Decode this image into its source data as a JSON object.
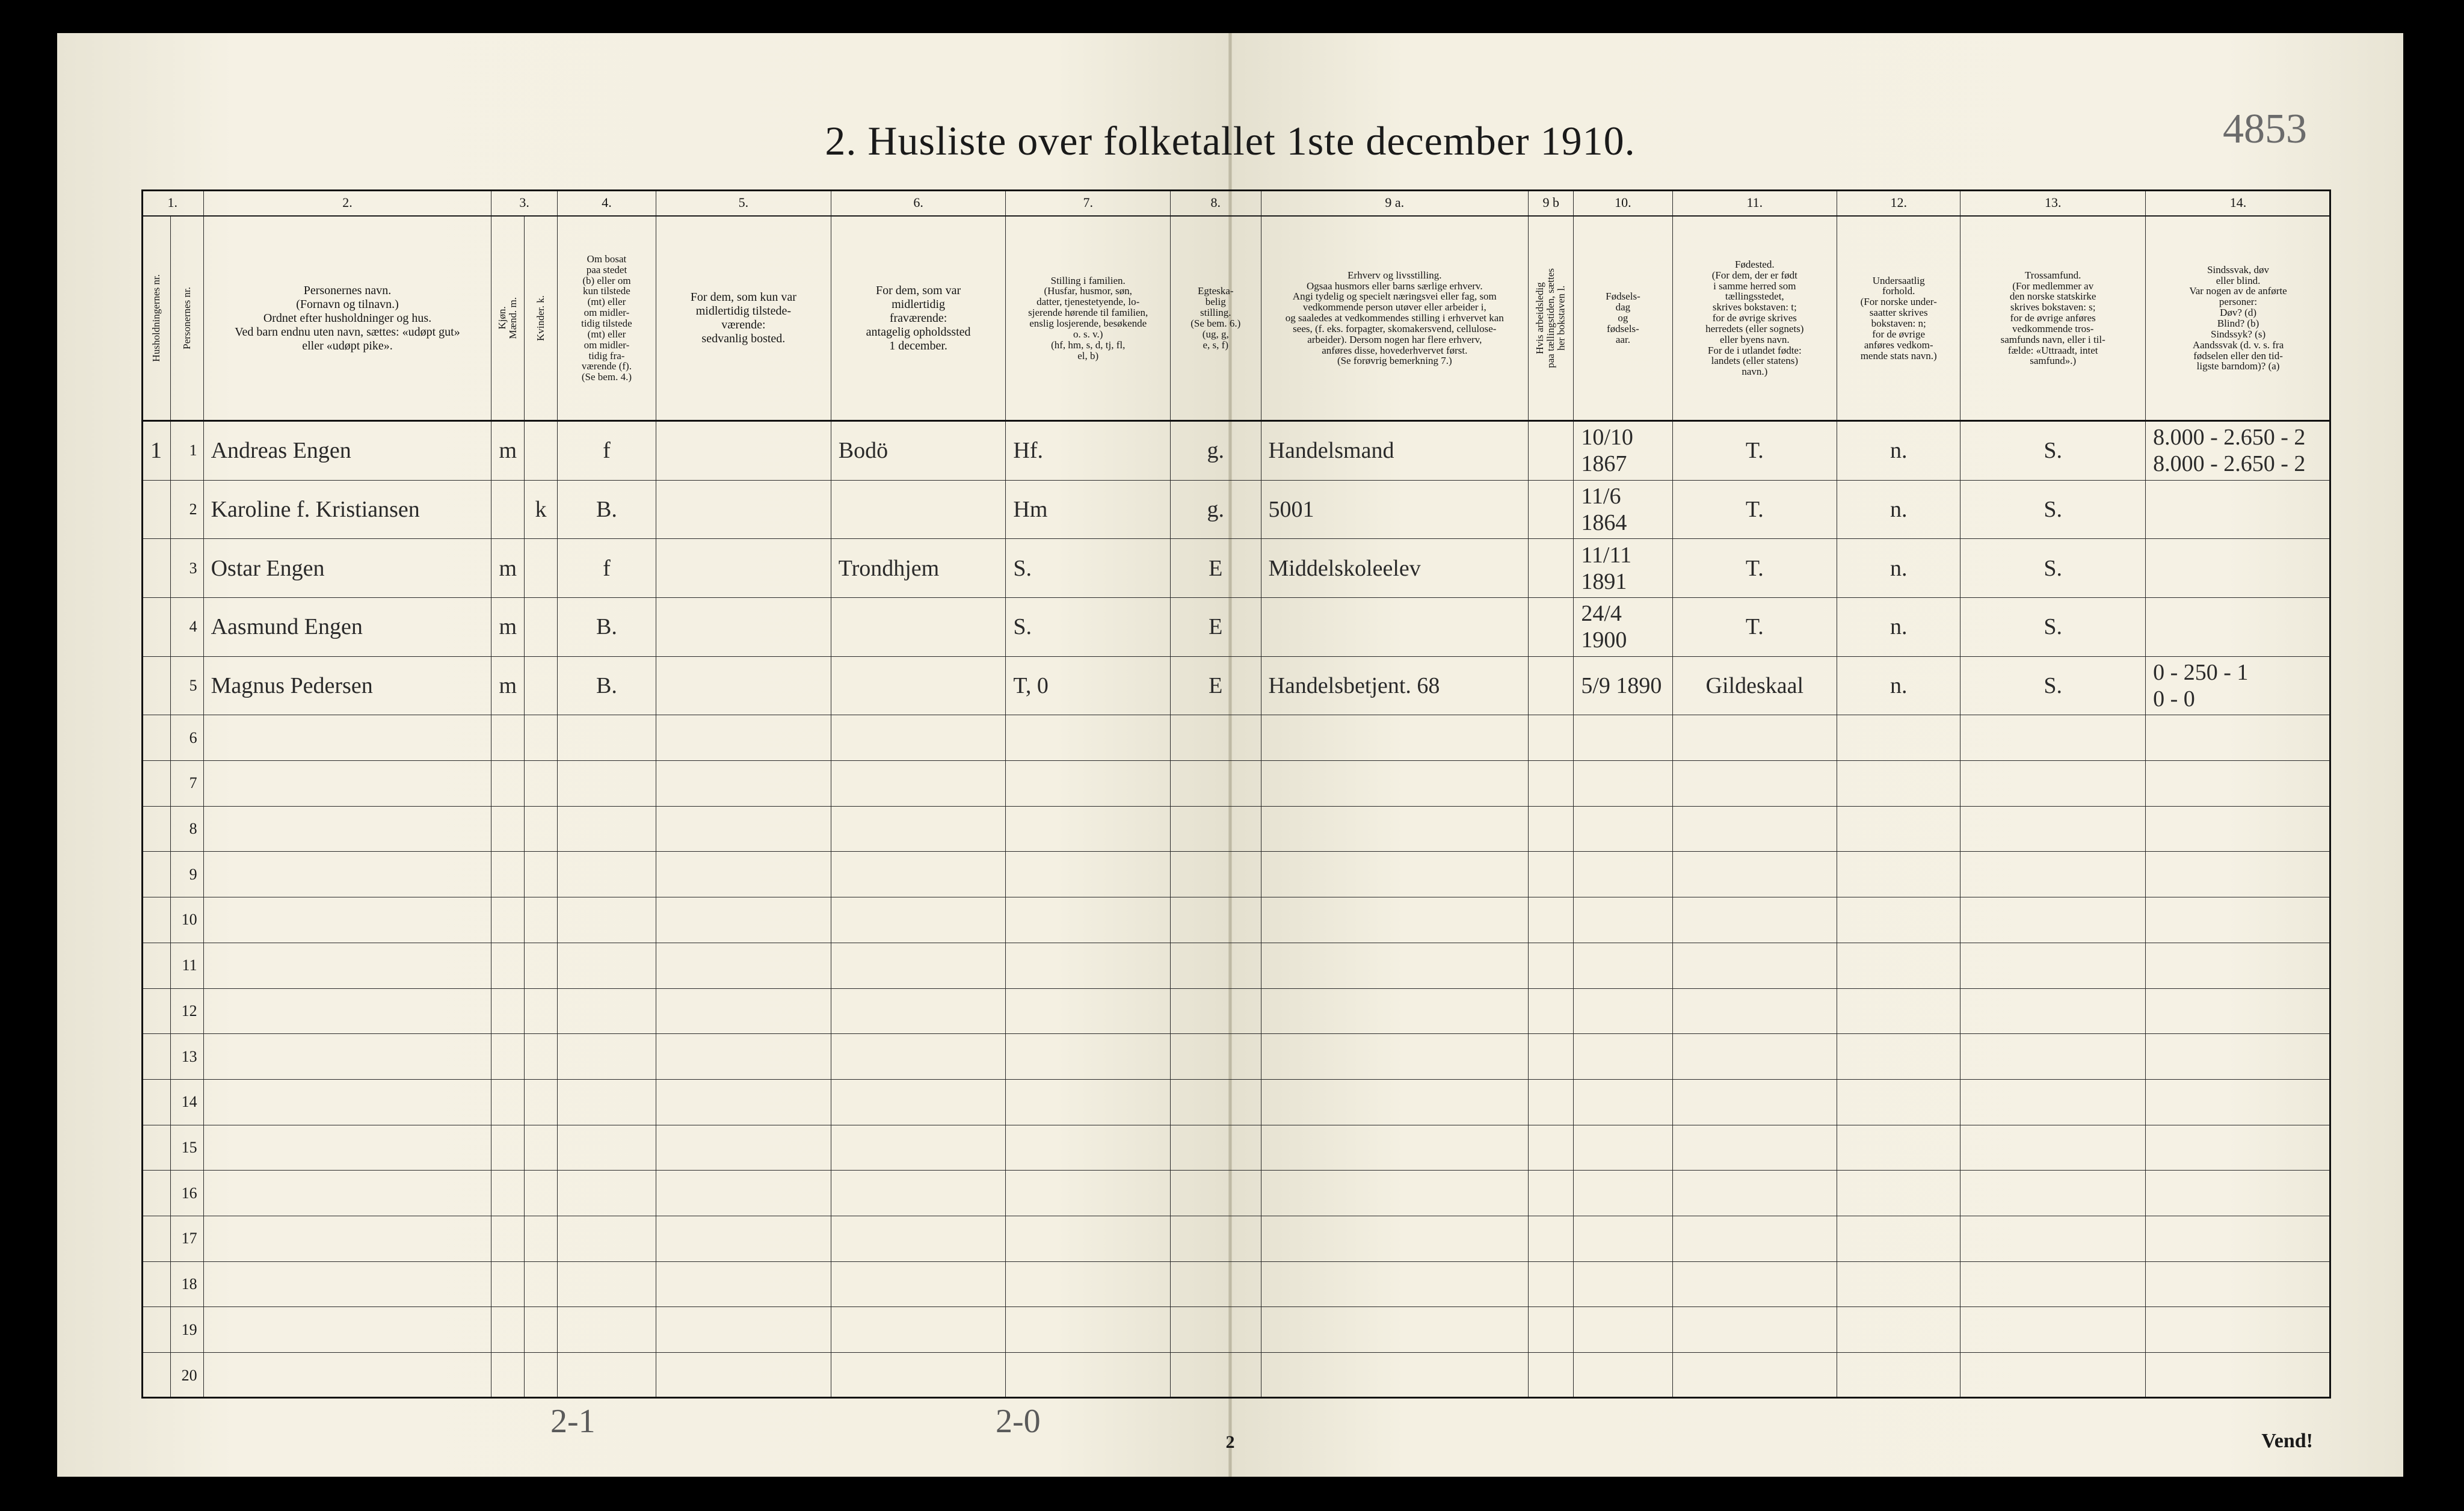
{
  "page": {
    "title": "2.  Husliste over folketallet 1ste december 1910.",
    "handwritten_page_number": "4853",
    "footer_left": "2-1",
    "footer_center_hand": "2-0",
    "printed_page_number": "2",
    "vend": "Vend!"
  },
  "colors": {
    "paper": "#f4f0e2",
    "ink": "#1a1a1a",
    "pencil": "#6b6b6b",
    "rule": "#2a2a2a"
  },
  "columns": {
    "numbers": [
      "1.",
      "2.",
      "3.",
      "4.",
      "5.",
      "6.",
      "7.",
      "8.",
      "9 a.",
      "9 b",
      "10.",
      "11.",
      "12.",
      "13.",
      "14."
    ],
    "widths_pct": [
      1.4,
      1.6,
      14.0,
      1.6,
      1.6,
      4.8,
      8.5,
      8.5,
      8.0,
      4.4,
      13.0,
      2.2,
      4.8,
      8.0,
      6.0,
      9.0,
      9.0
    ],
    "headers": [
      "Husholdningernes nr.",
      "Personernes nr.",
      "Personernes navn.\n(Fornavn og tilnavn.)\nOrdnet efter husholdninger og hus.\nVed barn endnu uten navn, sættes: «udøpt gut»\neller «udøpt pike».",
      "Kjøn.\nMænd. m.",
      "Kvinder. k.",
      "Om bosat\npaa stedet\n(b) eller om\nkun tilstede\n(mt) eller\nom midler-\ntidig tilstede\n(mt) eller\nom midler-\ntidig fra-\nværende (f).\n(Se bem. 4.)",
      "For dem, som kun var\nmidlertidig tilstede-\nværende:\nsedvanlig bosted.",
      "For dem, som var\nmidlertidig\nfraværende:\nantagelig opholdssted\n1 december.",
      "Stilling i familien.\n(Husfar, husmor, søn,\ndatter, tjenestetyende, lo-\nsjerende hørende til familien,\nenslig losjerende, besøkende\no. s. v.)\n(hf, hm, s, d, tj, fl,\nel, b)",
      "Egteska-\nbelig\nstilling.\n(Se bem. 6.)\n(ug, g,\ne, s, f)",
      "Erhverv og livsstilling.\nOgsaa husmors eller barns særlige erhverv.\nAngi tydelig og specielt næringsvei eller fag, som\nvedkommende person utøver eller arbeider i,\nog saaledes at vedkommendes stilling i erhvervet kan\nsees, (f. eks. forpagter, skomakersvend, cellulose-\narbeider). Dersom nogen har flere erhverv,\nanføres disse, hovederhvervet først.\n(Se forøvrig bemerkning 7.)",
      "Hvis arbeidsledig\npaa tællingstiden, sættes\nher bokstaven l.",
      "Fødsels-\ndag\nog\nfødsels-\naar.",
      "Fødested.\n(For dem, der er født\ni samme herred som\ntællingsstedet,\nskrives bokstaven: t;\nfor de øvrige skrives\nherredets (eller sognets)\neller byens navn.\nFor de i utlandet fødte:\nlandets (eller statens)\nnavn.)",
      "Undersaatlig\nforhold.\n(For norske under-\nsaatter skrives\nbokstaven: n;\nfor de øvrige\nanføres vedkom-\nmende stats navn.)",
      "Trossamfund.\n(For medlemmer av\nden norske statskirke\nskrives bokstaven: s;\nfor de øvrige anføres\nvedkommende tros-\nsamfunds navn, eller i til-\nfælde: «Uttraadt, intet\nsamfund».)",
      "Sindssvak, døv\neller blind.\nVar nogen av de anførte\npersoner:\nDøv?      (d)\nBlind?    (b)\nSindssyk? (s)\nAandssvak (d. v. s. fra\nfødselen eller den tid-\nligste barndom)? (a)"
    ]
  },
  "rows": [
    {
      "hh": "1",
      "pn": "1",
      "name": "Andreas Engen",
      "sex_m": "m",
      "sex_k": "",
      "bosat": "f",
      "sedvanlig": "",
      "fravar": "Bodö",
      "stilling_fam": "Hf.",
      "egte": "g.",
      "erhverv": "Handelsmand",
      "ledig": "",
      "fodsel": "10/10 1867",
      "fodested": "T.",
      "undersaat": "n.",
      "tros": "S.",
      "sind": "8.000 - 2.650 - 2\n8.000 - 2.650 - 2"
    },
    {
      "hh": "",
      "pn": "2",
      "name": "Karoline f. Kristiansen",
      "sex_m": "",
      "sex_k": "k",
      "bosat": "B.",
      "sedvanlig": "",
      "fravar": "",
      "stilling_fam": "Hm",
      "egte": "g.",
      "erhverv": "5001",
      "ledig": "",
      "fodsel": "11/6 1864",
      "fodested": "T.",
      "undersaat": "n.",
      "tros": "S.",
      "sind": ""
    },
    {
      "hh": "",
      "pn": "3",
      "name": "Ostar Engen",
      "sex_m": "m",
      "sex_k": "",
      "bosat": "f",
      "sedvanlig": "",
      "fravar": "Trondhjem",
      "stilling_fam": "S.",
      "egte": "E",
      "erhverv": "Middelskoleelev",
      "ledig": "",
      "fodsel": "11/11 1891",
      "fodested": "T.",
      "undersaat": "n.",
      "tros": "S.",
      "sind": ""
    },
    {
      "hh": "",
      "pn": "4",
      "name": "Aasmund Engen",
      "sex_m": "m",
      "sex_k": "",
      "bosat": "B.",
      "sedvanlig": "",
      "fravar": "",
      "stilling_fam": "S.",
      "egte": "E",
      "erhverv": "",
      "ledig": "",
      "fodsel": "24/4 1900",
      "fodested": "T.",
      "undersaat": "n.",
      "tros": "S.",
      "sind": ""
    },
    {
      "hh": "",
      "pn": "5",
      "name": "Magnus Pedersen",
      "sex_m": "m",
      "sex_k": "",
      "bosat": "B.",
      "sedvanlig": "",
      "fravar": "",
      "stilling_fam": "T,    0",
      "egte": "E",
      "erhverv": "Handelsbetjent.  68",
      "ledig": "",
      "fodsel": "5/9 1890",
      "fodested": "Gildeskaal",
      "undersaat": "n.",
      "tros": "S.",
      "sind": "0 - 250 - 1\n0 - 0"
    }
  ],
  "empty_row_numbers": [
    "6",
    "7",
    "8",
    "9",
    "10",
    "11",
    "12",
    "13",
    "14",
    "15",
    "16",
    "17",
    "18",
    "19",
    "20"
  ]
}
